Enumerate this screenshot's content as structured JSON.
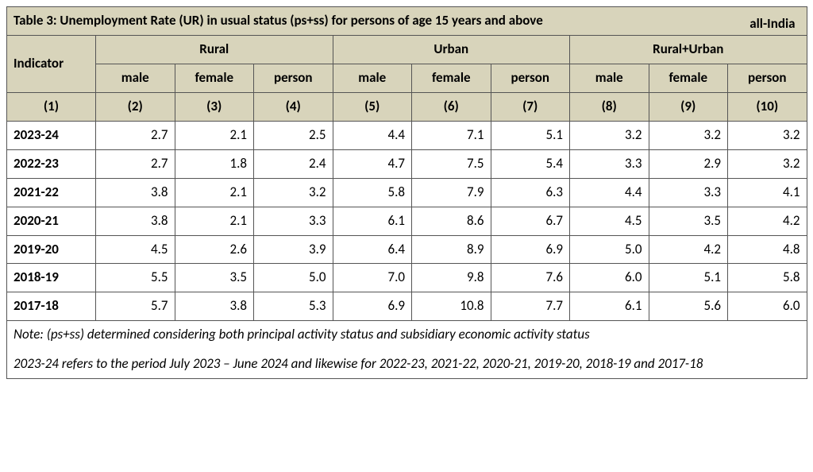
{
  "table": {
    "type": "table",
    "title": "Table 3: Unemployment Rate (UR) in usual status (ps+ss) for persons of age 15 years and above",
    "subtitle": "all-India",
    "header_bg": "#d8d4bb",
    "border_color": "#555555",
    "cell_bg": "#ffffff",
    "font_family": "Calibri",
    "title_fontsize": 18.5,
    "header_fontsize": 17,
    "body_fontsize": 17,
    "indicator_header": "Indicator",
    "groups": [
      "Rural",
      "Urban",
      "Rural+Urban"
    ],
    "sub_headers": [
      "male",
      "female",
      "person"
    ],
    "col_numbers": [
      "(1)",
      "(2)",
      "(3)",
      "(4)",
      "(5)",
      "(6)",
      "(7)",
      "(8)",
      "(9)",
      "(10)"
    ],
    "col_count": 10,
    "column_alignment": [
      "left",
      "right",
      "right",
      "right",
      "right",
      "right",
      "right",
      "right",
      "right",
      "right"
    ],
    "rows": [
      {
        "label": "2023-24",
        "values": [
          "2.7",
          "2.1",
          "2.5",
          "4.4",
          "7.1",
          "5.1",
          "3.2",
          "3.2",
          "3.2"
        ]
      },
      {
        "label": "2022-23",
        "values": [
          "2.7",
          "1.8",
          "2.4",
          "4.7",
          "7.5",
          "5.4",
          "3.3",
          "2.9",
          "3.2"
        ]
      },
      {
        "label": "2021-22",
        "values": [
          "3.8",
          "2.1",
          "3.2",
          "5.8",
          "7.9",
          "6.3",
          "4.4",
          "3.3",
          "4.1"
        ]
      },
      {
        "label": "2020-21",
        "values": [
          "3.8",
          "2.1",
          "3.3",
          "6.1",
          "8.6",
          "6.7",
          "4.5",
          "3.5",
          "4.2"
        ]
      },
      {
        "label": "2019-20",
        "values": [
          "4.5",
          "2.6",
          "3.9",
          "6.4",
          "8.9",
          "6.9",
          "5.0",
          "4.2",
          "4.8"
        ]
      },
      {
        "label": "2018-19",
        "values": [
          "5.5",
          "3.5",
          "5.0",
          "7.0",
          "9.8",
          "7.6",
          "6.0",
          "5.1",
          "5.8"
        ]
      },
      {
        "label": "2017-18",
        "values": [
          "5.7",
          "3.8",
          "5.3",
          "6.9",
          "10.8",
          "7.7",
          "6.1",
          "5.6",
          "6.0"
        ]
      }
    ],
    "note_line1": "Note: (ps+ss)  determined considering both principal activity status and subsidiary economic activity status",
    "note_line2": "2023-24 refers to the period July 2023 – June 2024 and likewise for 2022-23, 2021-22, 2020-21, 2019-20, 2018-19 and 2017-18"
  }
}
